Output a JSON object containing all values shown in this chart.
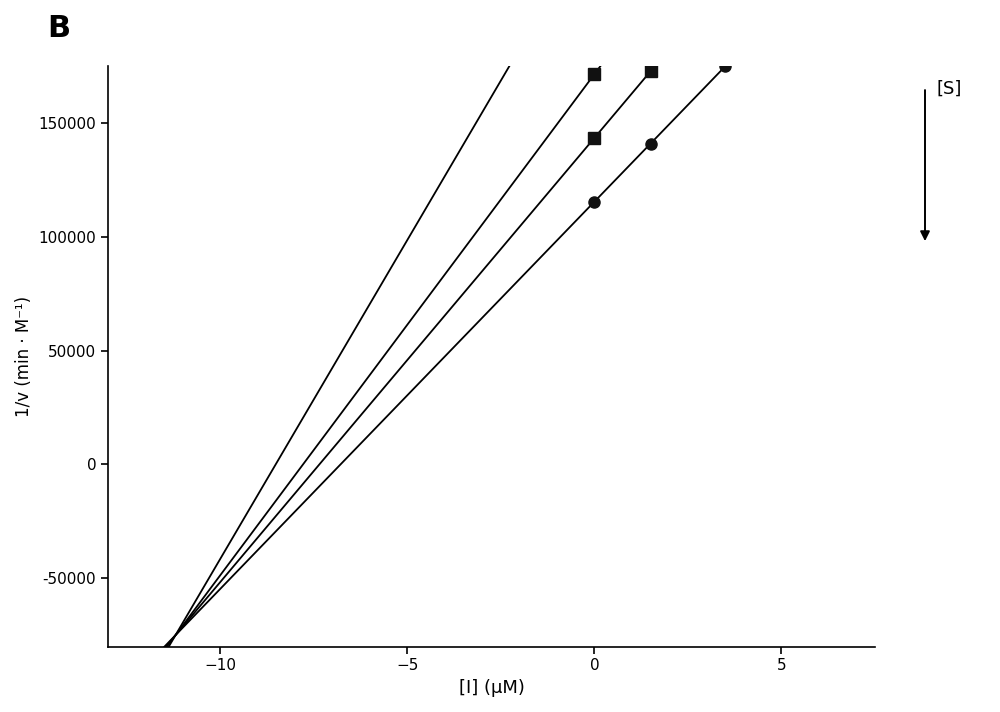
{
  "title_label": "B",
  "xlabel": "[I] (μM)",
  "ylabel": "1/v (min · M⁻¹)",
  "xlim": [
    -13,
    7.5
  ],
  "ylim": [
    -80000,
    175000
  ],
  "xticks": [
    -10,
    -5,
    0,
    5
  ],
  "yticks": [
    -50000,
    0,
    50000,
    100000,
    150000
  ],
  "background_color": "#ffffff",
  "line_color": "#000000",
  "convergence_x": -11.2,
  "convergence_y": -75000,
  "slopes": [
    28000,
    22000,
    19500,
    17000
  ],
  "x_plot_start": -13.0,
  "x_plot_end": 7.2,
  "markers": [
    {
      "type": "v",
      "x": [
        -0.5,
        0.5
      ],
      "size": 10
    },
    {
      "type": "s",
      "x": [
        0.0,
        1.5
      ],
      "size": 9
    },
    {
      "type": "s",
      "x": [
        0.0,
        1.5
      ],
      "size": 9
    },
    {
      "type": "o",
      "x": [
        0.0,
        1.5,
        3.5
      ],
      "size": 8
    }
  ],
  "arrow_label": "[S]",
  "figsize": [
    10.0,
    7.12
  ],
  "dpi": 100
}
